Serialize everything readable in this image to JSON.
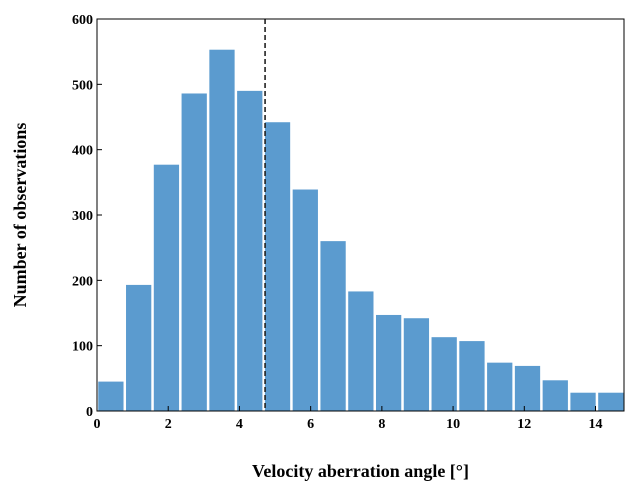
{
  "chart_data": {
    "type": "bar",
    "xlabel": "Velocity aberration angle [°]",
    "ylabel": "Number of observations",
    "title": "",
    "xlim": [
      0,
      14.8
    ],
    "ylim": [
      0,
      600
    ],
    "xticks": [
      0,
      2,
      4,
      6,
      8,
      10,
      12,
      14
    ],
    "yticks": [
      0,
      100,
      200,
      300,
      400,
      500,
      600
    ],
    "bin_width": 0.78,
    "bin_edges": [
      0,
      0.78,
      1.56,
      2.34,
      3.12,
      3.9,
      4.68,
      5.46,
      6.24,
      7.02,
      7.8,
      8.58,
      9.36,
      10.14,
      10.92,
      11.7,
      12.48,
      13.26,
      14.04,
      14.82
    ],
    "values": [
      45,
      193,
      377,
      486,
      553,
      490,
      442,
      339,
      260,
      183,
      147,
      142,
      113,
      107,
      74,
      69,
      47,
      28,
      28
    ],
    "vline": {
      "x": 4.72,
      "style": "dashed"
    },
    "bar_color": "#5b9bcf",
    "grid": false
  }
}
